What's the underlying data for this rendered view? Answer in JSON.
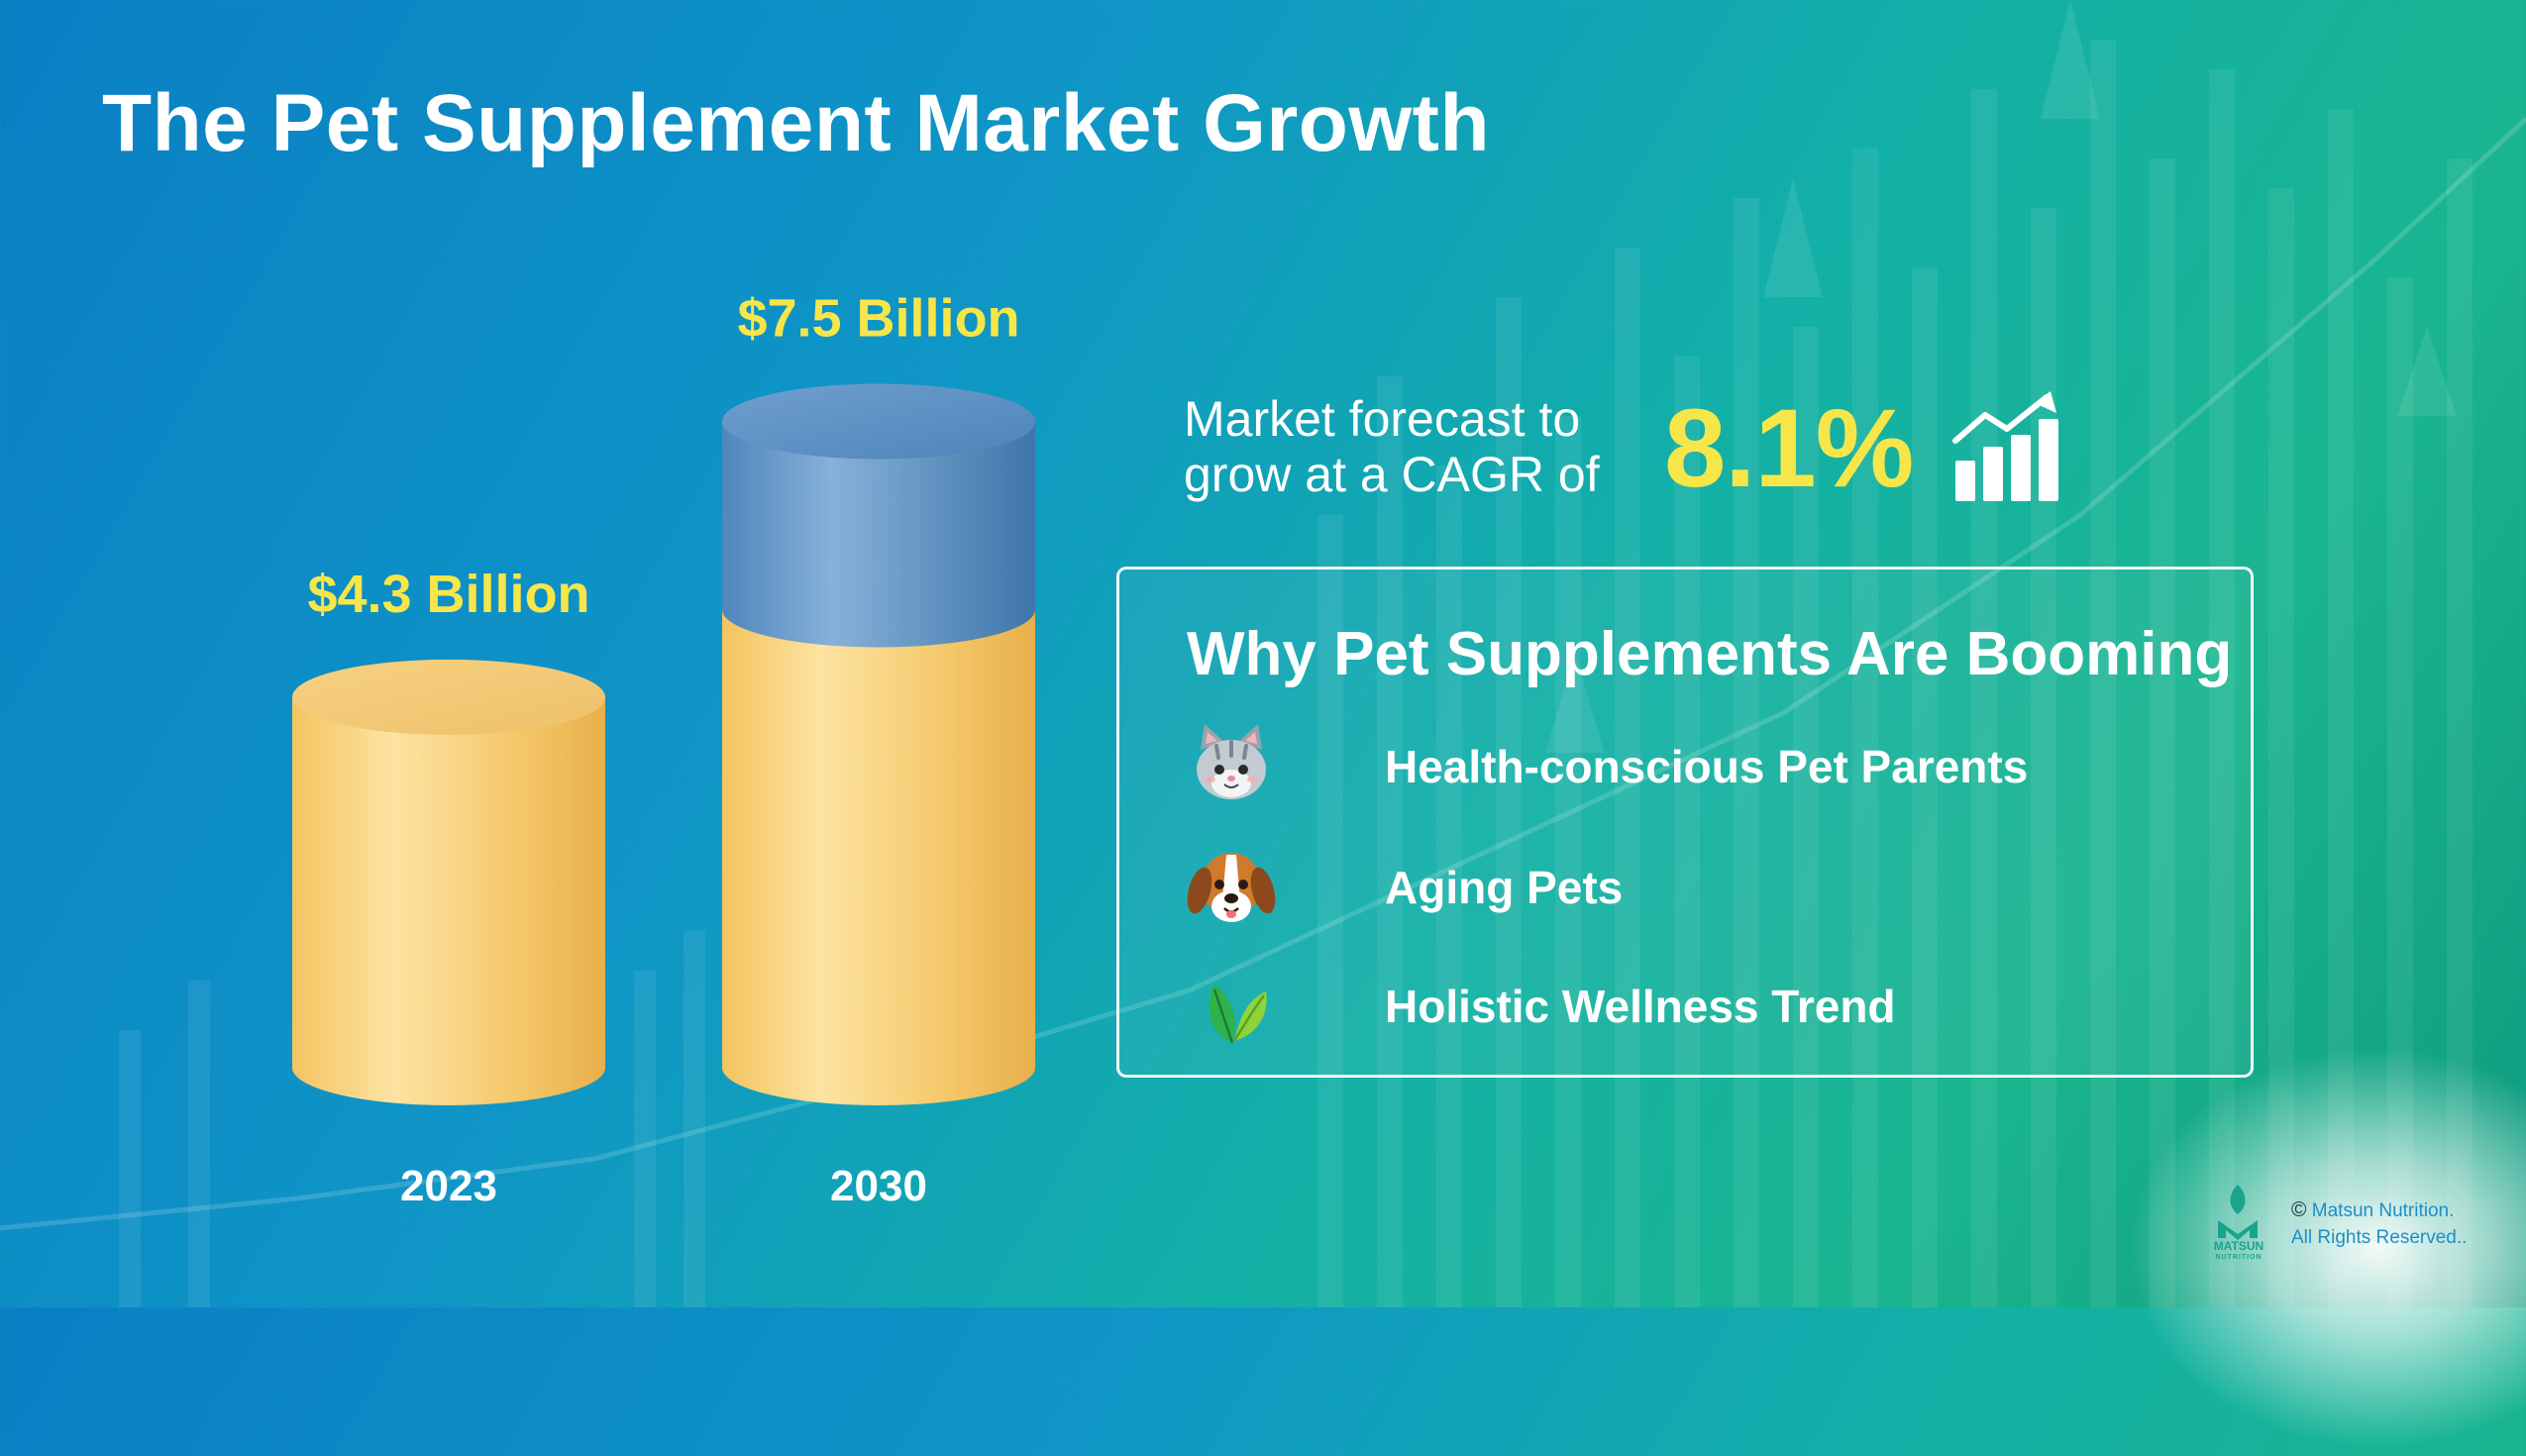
{
  "title": "The Pet Supplement Market Growth",
  "chart_data": {
    "type": "bar",
    "categories": [
      "2023",
      "2030"
    ],
    "values": [
      4.3,
      7.5
    ],
    "value_labels": [
      "$4.3 Billion",
      "$7.5 Billion"
    ],
    "units": "Billion USD",
    "style": "3d-cylinder",
    "colors": {
      "bar": "#f6cd6e",
      "highlight_cap": "#5f95c5",
      "value_label": "#f6e64a",
      "category_label": "#ffffff"
    }
  },
  "forecast": {
    "line1": "Market forecast to",
    "line2": "grow at a CAGR of",
    "cagr": "8.1%",
    "icon": "growth-chart-icon"
  },
  "why": {
    "title": "Why Pet Supplements Are Booming",
    "items": [
      {
        "icon": "cat-face-icon",
        "label": "Health-conscious Pet Parents"
      },
      {
        "icon": "dog-face-icon",
        "label": "Aging Pets"
      },
      {
        "icon": "leaf-icon",
        "label": "Holistic Wellness Trend"
      }
    ]
  },
  "footer": {
    "logo_name": "MATSUN",
    "logo_sub": "NUTRITION",
    "copyright_symbol": "©",
    "copyright_line1": "Matsun Nutrition.",
    "copyright_line2": "All Rights Reserved.."
  },
  "colors": {
    "accent_yellow": "#f6e64a",
    "background_start": "#0a7fc4",
    "background_end": "#1ab58f",
    "brand_teal": "#1aa38d"
  }
}
